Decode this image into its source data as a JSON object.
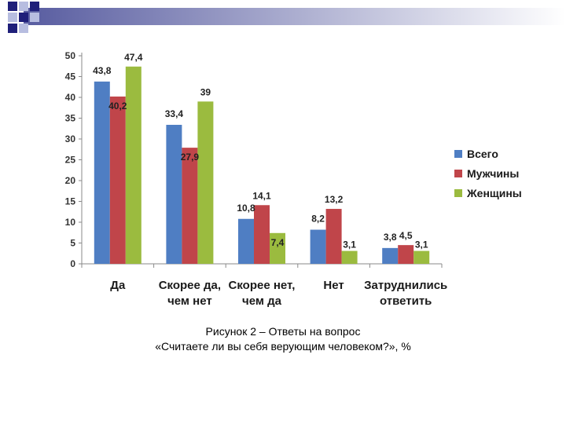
{
  "colors": {
    "deco_square_dark": "#1f1f7a",
    "deco_square_light": "#b7bde0",
    "deco_gradient_start": "#3a3f8f",
    "deco_gradient_end": "#ffffff"
  },
  "chart_data": {
    "type": "bar",
    "categories": [
      [
        "Да"
      ],
      [
        "Скорее да,",
        "чем нет"
      ],
      [
        "Скорее нет,",
        "чем да"
      ],
      [
        "Нет"
      ],
      [
        "Затруднились",
        "ответить"
      ]
    ],
    "series": [
      {
        "name": "Всего",
        "color": "#4f7ec3",
        "values": [
          43.8,
          33.4,
          10.8,
          8.2,
          3.8
        ],
        "labels": [
          "43,8",
          "33,4",
          "10,8",
          "8,2",
          "3,8"
        ]
      },
      {
        "name": "Мужчины",
        "color": "#c0454a",
        "values": [
          40.2,
          27.9,
          14.1,
          13.2,
          4.5
        ],
        "labels": [
          "40,2",
          "27,9",
          "14,1",
          "13,2",
          "4,5"
        ]
      },
      {
        "name": "Женщины",
        "color": "#9bbb3f",
        "values": [
          47.4,
          39,
          7.4,
          3.1,
          3.1
        ],
        "labels": [
          "47,4",
          "39",
          "7,4",
          "3,1",
          "3,1"
        ]
      }
    ],
    "yticks": [
      0,
      5,
      10,
      15,
      20,
      25,
      30,
      35,
      40,
      45,
      50
    ],
    "ylim": [
      0,
      50
    ],
    "legend_position": "right",
    "grid": false
  },
  "caption": {
    "line1": "Рисунок 2 – Ответы на вопрос",
    "line2": "«Считаете ли вы себя верующим человеком?», %"
  }
}
